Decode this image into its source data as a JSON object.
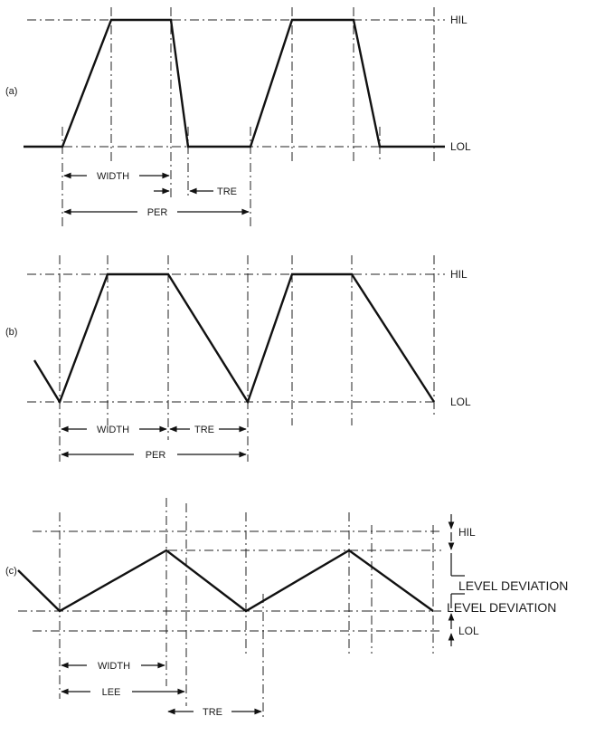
{
  "panels": {
    "a": {
      "label": "(a)",
      "hil": "HIL",
      "lol": "LOL",
      "width": "WIDTH",
      "tre": "TRE",
      "per": "PER"
    },
    "b": {
      "label": "(b)",
      "hil": "HIL",
      "lol": "LOL",
      "width": "WIDTH",
      "tre": "TRE",
      "per": "PER"
    },
    "c": {
      "label": "(c)",
      "hil": "HIL",
      "lol": "LOL",
      "level_deviation_upper": "LEVEL DEVIATION",
      "level_deviation_lower": "LEVEL DEVIATION",
      "width": "WIDTH",
      "lee": "LEE",
      "tre": "TRE"
    }
  }
}
